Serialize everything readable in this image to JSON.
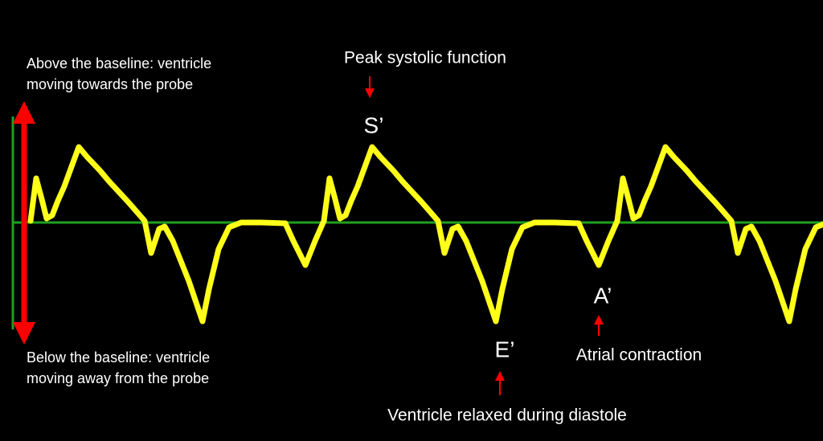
{
  "annotations": {
    "above_baseline": [
      "Above the baseline: ventricle",
      "moving towards the probe"
    ],
    "below_baseline": [
      "Below the baseline: ventricle",
      "moving away from the probe"
    ],
    "peak_label": "Peak systolic function",
    "s_wave": "S’",
    "e_wave": "E’",
    "a_wave": "A’",
    "a_label": "Atrial contraction",
    "e_label": "Ventricle relaxed during diastole"
  }
}
